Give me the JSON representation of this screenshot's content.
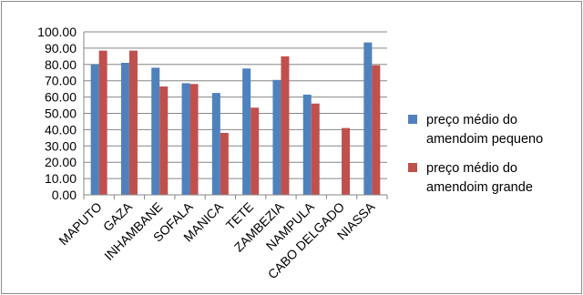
{
  "chart_data": {
    "type": "bar",
    "title": "",
    "xlabel": "",
    "ylabel": "",
    "ylim": [
      0,
      100
    ],
    "ytick_step": 10,
    "ytick_format": "0.00",
    "grid": true,
    "legend_position": "right",
    "categories": [
      "MAPUTO",
      "GAZA",
      "INHAMBANE",
      "SOFALA",
      "MANICA",
      "TETE",
      "ZAMBEZIA",
      "NAMPULA",
      "CABO DELGADO",
      "NIASSA"
    ],
    "series": [
      {
        "name_lines": [
          "preço médio do",
          "amendoim pequeno"
        ],
        "color": "#4f81bd",
        "values": [
          80.0,
          81.0,
          78.0,
          68.5,
          62.5,
          77.5,
          70.5,
          61.5,
          null,
          93.5
        ]
      },
      {
        "name_lines": [
          "preço médio do",
          "amendoim grande"
        ],
        "color": "#c0504d",
        "values": [
          88.5,
          88.5,
          66.5,
          68.0,
          38.0,
          53.5,
          85.0,
          56.0,
          41.0,
          79.5
        ]
      }
    ]
  }
}
